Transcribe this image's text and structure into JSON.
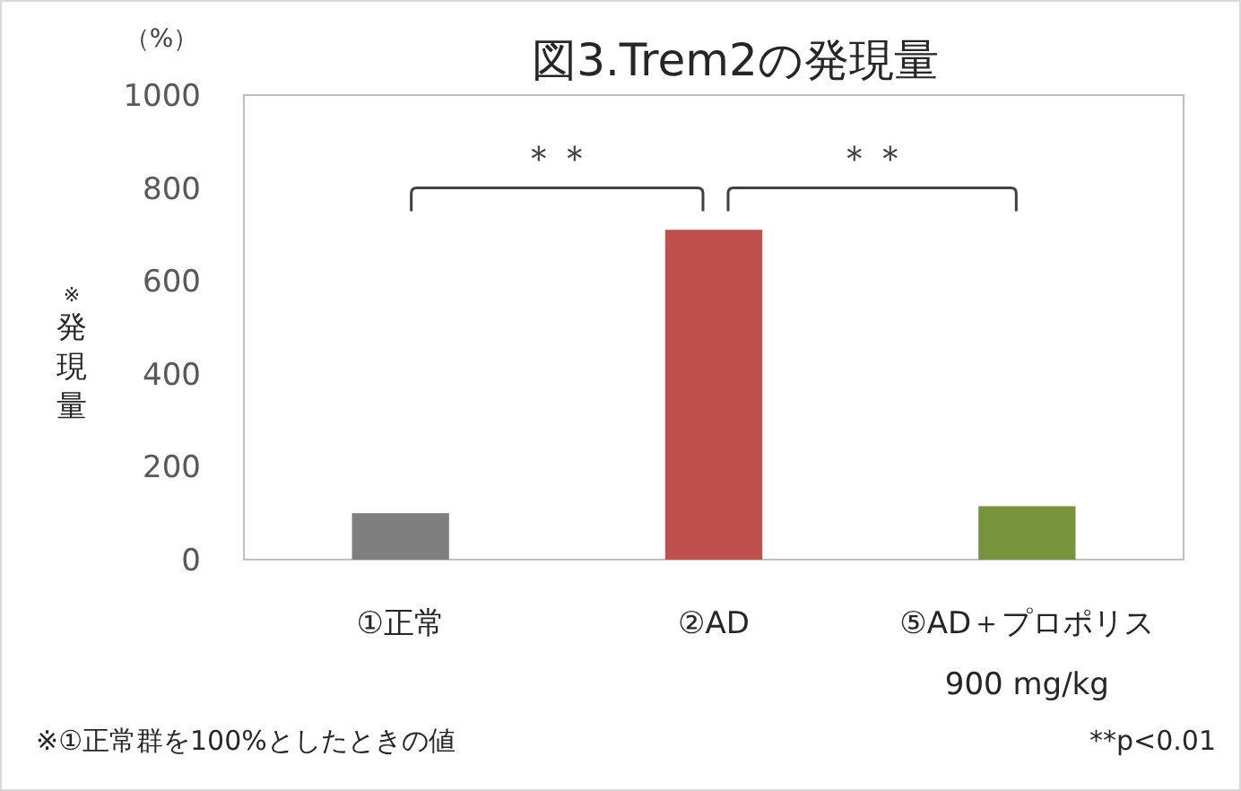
{
  "chart_data": {
    "type": "bar",
    "title": "図3.Trem2の発現量",
    "ylabel": "※発現量",
    "categories": [
      "①正常",
      "②AD",
      "⑤AD＋プロポリス 900 mg/kg"
    ],
    "values": [
      100,
      710,
      115
    ],
    "colors": [
      "#7f7f7f",
      "#c0504d",
      "#77933c"
    ],
    "ylim": [
      0,
      1000
    ],
    "yticks": [
      0,
      200,
      400,
      600,
      800,
      1000
    ],
    "grid": false,
    "annotations": [
      "（%）",
      "＊＊",
      "＊＊",
      "※①正常群を100%としたときの値",
      "**p<0.01"
    ]
  }
}
